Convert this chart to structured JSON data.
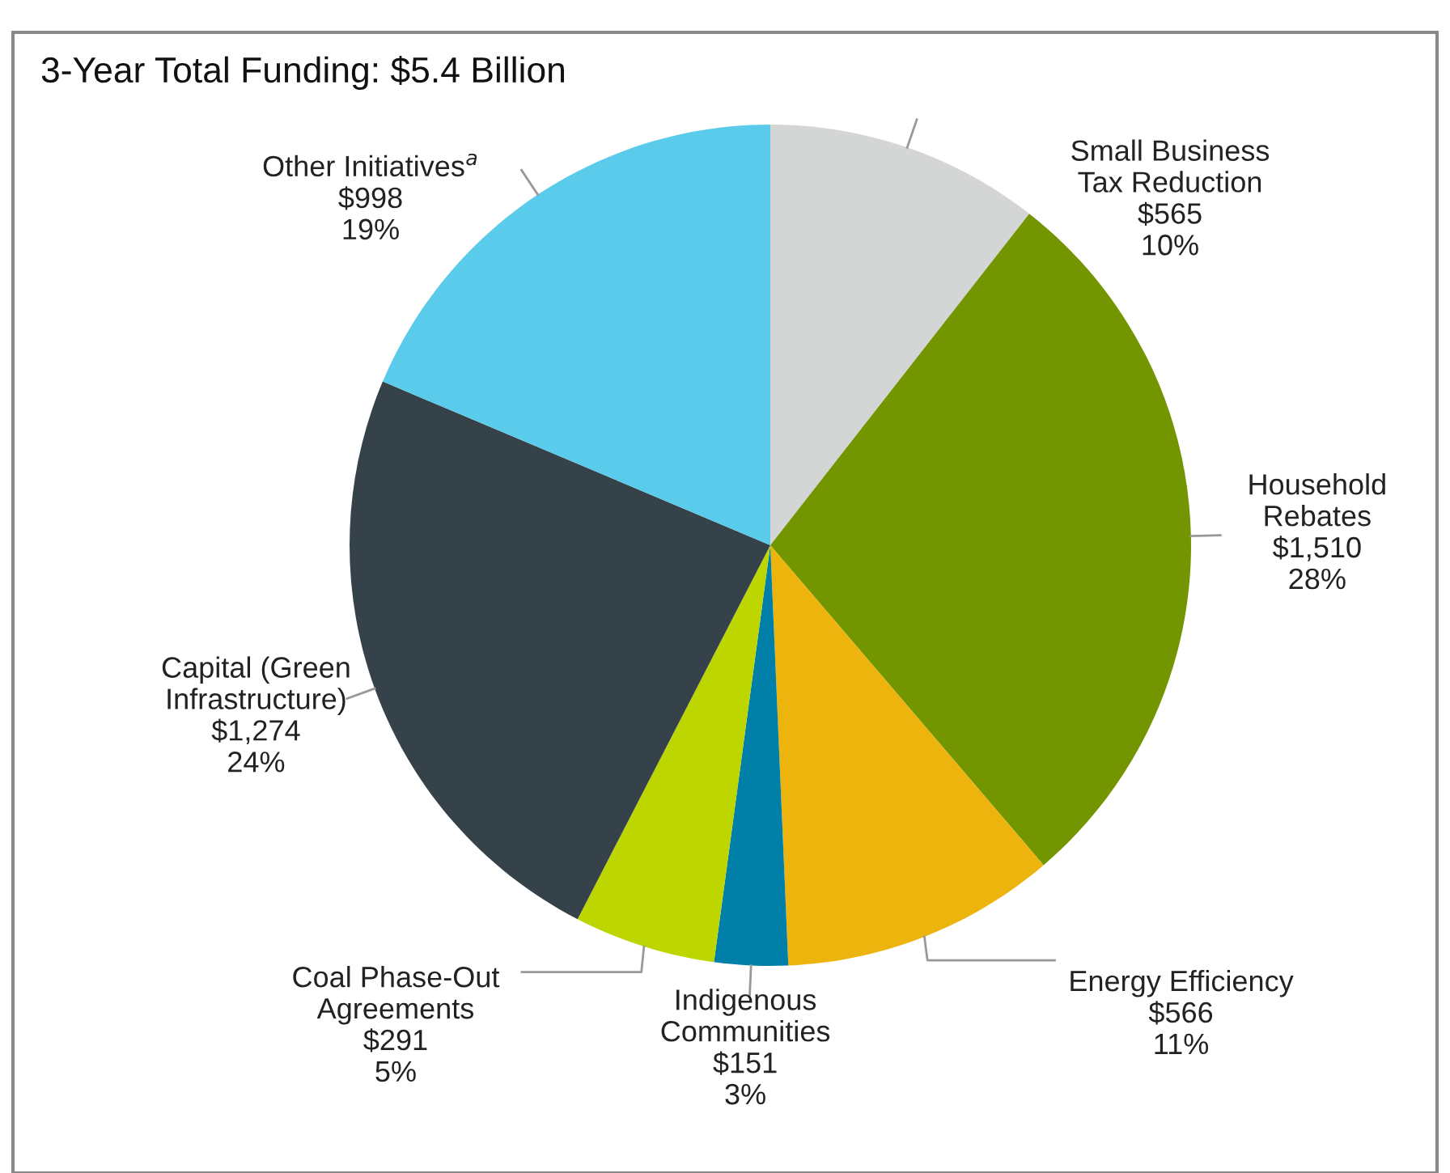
{
  "chart_data": {
    "type": "pie",
    "title": "3-Year Total Funding: $5.4 Billion",
    "categories": [
      "Small Business\nTax Reduction",
      "Household\nRebates",
      "Energy Efficiency",
      "Indigenous\nCommunities",
      "Coal Phase-Out\nAgreements",
      "Capital (Green\nInfrastructure)",
      "Other Initiatives$^{a}$"
    ],
    "values": [
      565,
      1510,
      566,
      151,
      291,
      1274,
      998
    ],
    "value_labels": [
      "$565\n10%",
      "$1,510\n28%",
      "$566\n11%",
      "$151\n3%",
      "$291\n5%",
      "$1,274\n24%",
      "$998\n19%"
    ],
    "colors": [
      "#d4d5d5",
      "#739600",
      "#ecb40c",
      "#0080a8",
      "#bed600",
      "#35424a",
      "#5bcbeb"
    ]
  }
}
